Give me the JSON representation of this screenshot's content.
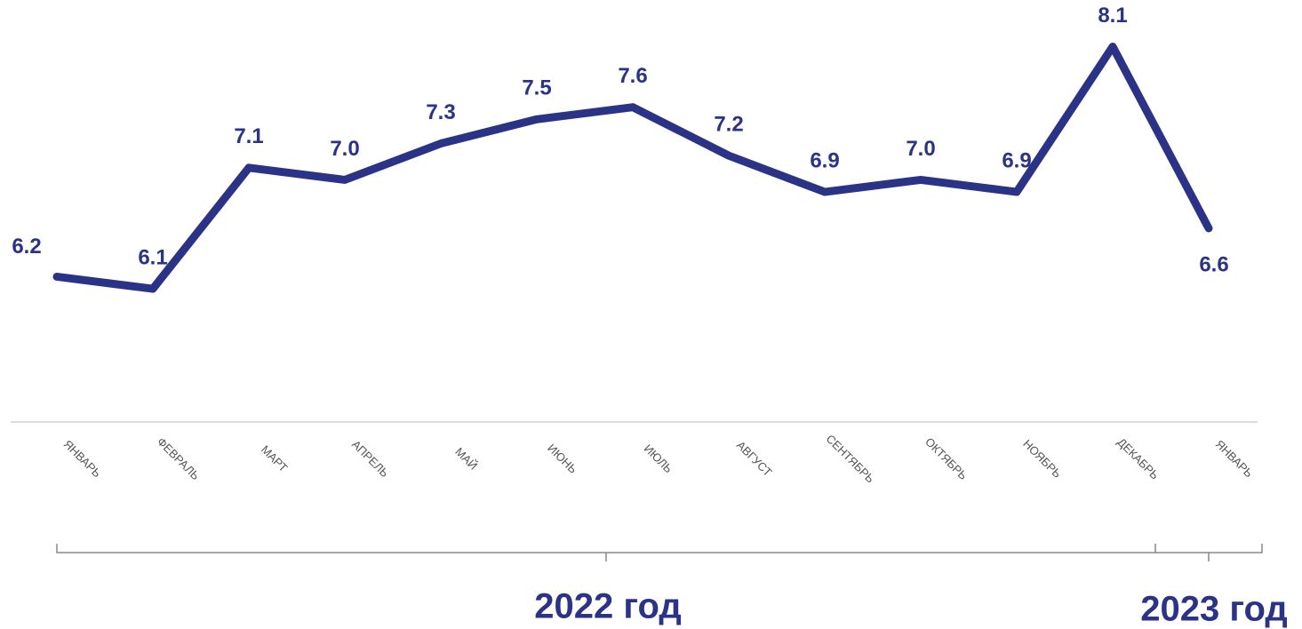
{
  "chart_data": {
    "type": "line",
    "categories": [
      "ЯНВАРЬ",
      "ФЕВРАЛЬ",
      "МАРТ",
      "АПРЕЛЬ",
      "МАЙ",
      "ИЮНЬ",
      "ИЮЛЬ",
      "АВГУСТ",
      "СЕНТЯБРЬ",
      "ОКТЯБРЬ",
      "НОЯБРЬ",
      "ДЕКАБРЬ",
      "ЯНВАРЬ"
    ],
    "series": [
      {
        "color": "#2b3386",
        "values": [
          6.2,
          6.1,
          7.1,
          7.0,
          7.3,
          7.5,
          7.6,
          7.2,
          6.9,
          7.0,
          6.9,
          8.1,
          6.6
        ],
        "value_labels": [
          "6.2",
          "6.1",
          "7.1",
          "7.0",
          "7.3",
          "7.5",
          "7.6",
          "7.2",
          "6.9",
          "7.0",
          "6.9",
          "8.1",
          "6.6"
        ]
      }
    ],
    "ylim": [
      5,
      8.5
    ],
    "groups": [
      "2022 год",
      "2023 год"
    ]
  }
}
